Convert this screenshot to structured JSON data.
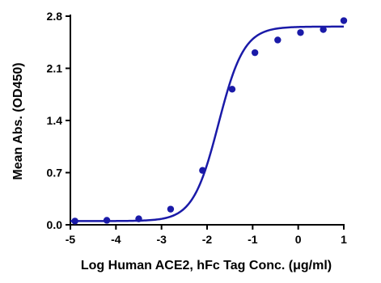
{
  "chart_data": {
    "type": "scatter",
    "title": "",
    "xlabel": "Log Human ACE2, hFc Tag Conc. (μg/ml)",
    "ylabel": "Mean Abs. (OD450)",
    "xlim": [
      -5,
      1
    ],
    "ylim": [
      0,
      2.8
    ],
    "x_ticks": [
      "-5",
      "-4",
      "-3",
      "-2",
      "-1",
      "0",
      "1"
    ],
    "y_ticks": [
      "0.0",
      "0.7",
      "1.4",
      "2.1",
      "2.8"
    ],
    "grid": false,
    "legend": "none",
    "colors": {
      "series": "#1a1aa8",
      "axis": "#000000"
    },
    "series": [
      {
        "points": {
          "x": [
            -4.9,
            -4.2,
            -3.5,
            -2.8,
            -2.1,
            -1.45,
            -0.95,
            -0.45,
            0.05,
            0.55,
            1.0
          ],
          "y": [
            0.05,
            0.06,
            0.08,
            0.21,
            0.73,
            1.82,
            2.31,
            2.48,
            2.58,
            2.62,
            2.74
          ]
        },
        "fit": {
          "model": "4PL",
          "bottom": 0.05,
          "top": 2.66,
          "log_ec50": -1.75,
          "hill": 1.55
        }
      }
    ]
  }
}
